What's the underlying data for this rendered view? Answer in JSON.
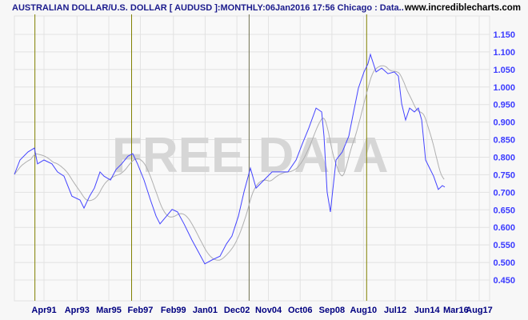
{
  "header": {
    "title": "AUSTRALIAN DOLLAR/U.S. DOLLAR [ AUDUSD ]:MONTHLY:06Jan2016 17:56 Chicago : Data..",
    "site": "www.incrediblecharts.com"
  },
  "watermark": "FREE DATA",
  "colors": {
    "price": "#4444ff",
    "ma": "#b0b0b0",
    "marker": "#808000",
    "marker_alt": "#707050",
    "grid": "#e2e2e2",
    "axis_y": "#3a3aff",
    "axis_x": "#000080"
  },
  "chart_data": {
    "type": "line",
    "title": "AUSTRALIAN DOLLAR/U.S. DOLLAR [ AUDUSD ]:MONTHLY",
    "xlabel": "",
    "ylabel": "",
    "xlim": [
      1989.4,
      2018.2
    ],
    "ylim": [
      0.4,
      1.2
    ],
    "grid": true,
    "y_ticks": [
      "0.450",
      "0.500",
      "0.550",
      "0.600",
      "0.650",
      "0.700",
      "0.750",
      "0.800",
      "0.850",
      "0.900",
      "0.950",
      "1.000",
      "1.050",
      "1.100",
      "1.150"
    ],
    "x_ticks": [
      {
        "label": "Apr91",
        "t": 1991.25
      },
      {
        "label": "Apr93",
        "t": 1993.25
      },
      {
        "label": "Mar95",
        "t": 1995.17
      },
      {
        "label": "Feb97",
        "t": 1997.08
      },
      {
        "label": "Feb99",
        "t": 1999.08
      },
      {
        "label": "Jan01",
        "t": 2001.0
      },
      {
        "label": "Dec02",
        "t": 2002.92
      },
      {
        "label": "Nov04",
        "t": 2004.83
      },
      {
        "label": "Oct06",
        "t": 2006.75
      },
      {
        "label": "Sep08",
        "t": 2008.67
      },
      {
        "label": "Aug10",
        "t": 2010.58
      },
      {
        "label": "Jul12",
        "t": 2012.5
      },
      {
        "label": "Jun14",
        "t": 2014.42
      },
      {
        "label": "Mar16",
        "t": 2016.17
      },
      {
        "label": "Aug17",
        "t": 2017.58
      }
    ],
    "markers": [
      1990.7,
      1996.55,
      2003.66,
      2010.77
    ],
    "series": [
      {
        "name": "AUDUSD",
        "points": [
          [
            1989.46,
            0.751
          ],
          [
            1989.8,
            0.792
          ],
          [
            1990.28,
            0.815
          ],
          [
            1990.67,
            0.826
          ],
          [
            1990.86,
            0.781
          ],
          [
            1991.25,
            0.792
          ],
          [
            1991.73,
            0.781
          ],
          [
            1992.07,
            0.758
          ],
          [
            1992.46,
            0.746
          ],
          [
            1992.94,
            0.689
          ],
          [
            1993.43,
            0.678
          ],
          [
            1993.67,
            0.655
          ],
          [
            1994.01,
            0.689
          ],
          [
            1994.3,
            0.712
          ],
          [
            1994.64,
            0.758
          ],
          [
            1994.88,
            0.746
          ],
          [
            1995.27,
            0.735
          ],
          [
            1995.61,
            0.765
          ],
          [
            1995.95,
            0.781
          ],
          [
            1996.33,
            0.803
          ],
          [
            1996.62,
            0.81
          ],
          [
            1996.91,
            0.781
          ],
          [
            1997.3,
            0.735
          ],
          [
            1997.69,
            0.678
          ],
          [
            1998.03,
            0.632
          ],
          [
            1998.27,
            0.61
          ],
          [
            1998.66,
            0.632
          ],
          [
            1999.0,
            0.651
          ],
          [
            1999.33,
            0.644
          ],
          [
            1999.72,
            0.61
          ],
          [
            2000.2,
            0.564
          ],
          [
            2000.59,
            0.53
          ],
          [
            2000.98,
            0.496
          ],
          [
            2001.41,
            0.507
          ],
          [
            2001.9,
            0.518
          ],
          [
            2002.29,
            0.553
          ],
          [
            2002.62,
            0.575
          ],
          [
            2003.01,
            0.632
          ],
          [
            2003.35,
            0.701
          ],
          [
            2003.74,
            0.769
          ],
          [
            2004.08,
            0.712
          ],
          [
            2004.56,
            0.735
          ],
          [
            2005.05,
            0.758
          ],
          [
            2005.53,
            0.758
          ],
          [
            2006.01,
            0.758
          ],
          [
            2006.5,
            0.792
          ],
          [
            2006.88,
            0.838
          ],
          [
            2007.27,
            0.883
          ],
          [
            2007.71,
            0.94
          ],
          [
            2008.05,
            0.929
          ],
          [
            2008.19,
            0.86
          ],
          [
            2008.38,
            0.701
          ],
          [
            2008.58,
            0.644
          ],
          [
            2008.92,
            0.792
          ],
          [
            2009.3,
            0.815
          ],
          [
            2009.69,
            0.86
          ],
          [
            2009.98,
            0.929
          ],
          [
            2010.27,
            0.997
          ],
          [
            2010.61,
            1.043
          ],
          [
            2010.85,
            1.066
          ],
          [
            2011.0,
            1.093
          ],
          [
            2011.34,
            1.043
          ],
          [
            2011.68,
            1.054
          ],
          [
            2012.06,
            1.038
          ],
          [
            2012.45,
            1.043
          ],
          [
            2012.69,
            1.031
          ],
          [
            2012.89,
            0.952
          ],
          [
            2013.13,
            0.906
          ],
          [
            2013.37,
            0.94
          ],
          [
            2013.66,
            0.929
          ],
          [
            2013.9,
            0.94
          ],
          [
            2014.1,
            0.906
          ],
          [
            2014.34,
            0.792
          ],
          [
            2014.58,
            0.769
          ],
          [
            2014.82,
            0.746
          ],
          [
            2015.11,
            0.708
          ],
          [
            2015.35,
            0.719
          ],
          [
            2015.5,
            0.715
          ]
        ]
      },
      {
        "name": "Moving average",
        "derived": "trailing 13-month average of AUDUSD"
      }
    ]
  }
}
